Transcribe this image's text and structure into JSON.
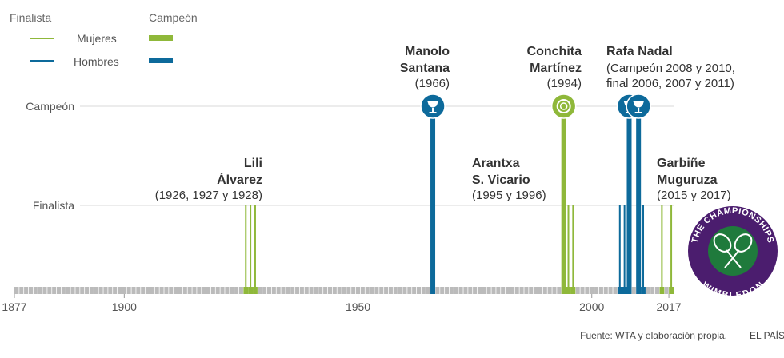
{
  "chart_data": {
    "type": "timeline",
    "x_range": [
      1877,
      2017
    ],
    "x_ticks": [
      "1877",
      "1900",
      "1950",
      "2000",
      "2017"
    ],
    "levels": [
      "Campeón",
      "Finalista"
    ],
    "legend": {
      "col_finalist": "Finalista",
      "col_champion": "Campeón",
      "rows": [
        {
          "label": "Mujeres",
          "color": "#8fb83a"
        },
        {
          "label": "Hombres",
          "color": "#0d6a9b"
        }
      ]
    },
    "colors": {
      "women": "#8fb83a",
      "men": "#0d6a9b",
      "grid": "#d9d9d9",
      "timeline": "#bbbbbb"
    },
    "players": [
      {
        "name": [
          "Lili",
          "Álvarez"
        ],
        "detail": [
          "(1926, 1927 y 1928)"
        ],
        "gender": "women",
        "finals": [
          1926,
          1927,
          1928
        ],
        "titles": []
      },
      {
        "name": [
          "Manolo",
          "Santana"
        ],
        "detail": [
          "(1966)"
        ],
        "gender": "men",
        "finals": [],
        "titles": [
          1966
        ]
      },
      {
        "name": [
          "Arantxa",
          "S. Vicario"
        ],
        "detail": [
          "(1995 y 1996)"
        ],
        "gender": "women",
        "finals": [
          1995,
          1996
        ],
        "titles": []
      },
      {
        "name": [
          "Conchita",
          "Martínez"
        ],
        "detail": [
          "(1994)"
        ],
        "gender": "women",
        "finals": [],
        "titles": [
          1994
        ]
      },
      {
        "name": [
          "Rafa Nadal"
        ],
        "detail": [
          "(Campeón 2008 y 2010,",
          "final 2006, 2007 y 2011)"
        ],
        "gender": "men",
        "finals": [
          2006,
          2007,
          2011
        ],
        "titles": [
          2008,
          2010
        ]
      },
      {
        "name": [
          "Garbiñe",
          "Muguruza"
        ],
        "detail": [
          "(2015 y 2017)"
        ],
        "gender": "women",
        "finals": [
          2015,
          2017
        ],
        "titles": []
      }
    ]
  },
  "logo": {
    "top": "THE CHAMPIONSHIPS",
    "bottom": "WIMBLEDON"
  },
  "footer": {
    "source": "Fuente: WTA y elaboración propia.",
    "brand": "EL PAÍS"
  }
}
